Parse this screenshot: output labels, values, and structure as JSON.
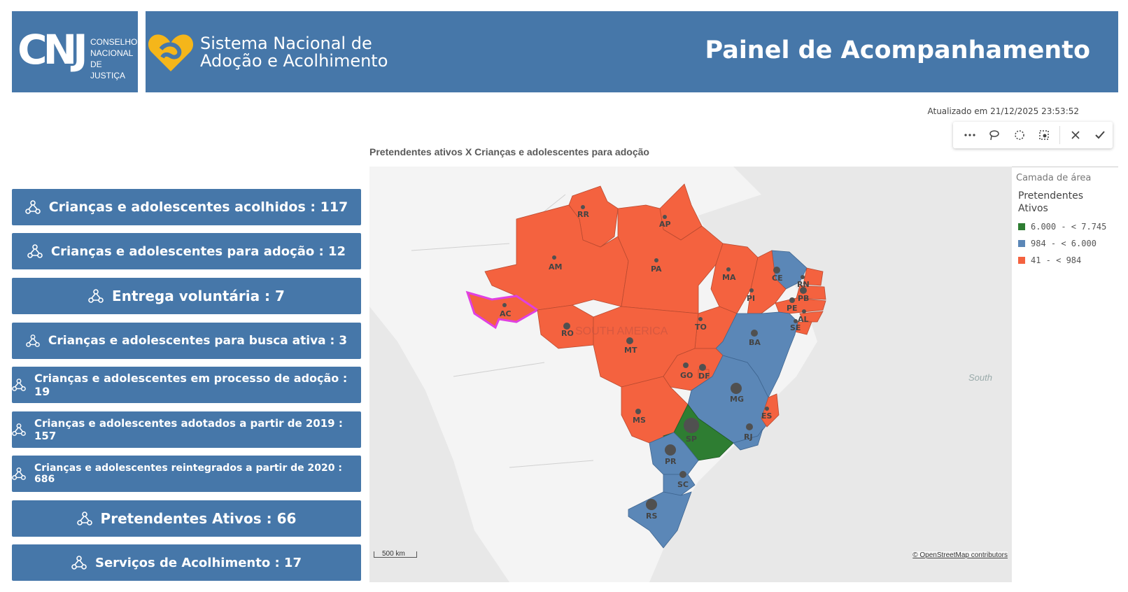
{
  "header": {
    "logo_letters": "CNJ",
    "logo_text_line1": "CONSELHO",
    "logo_text_line2": "NACIONAL",
    "logo_text_line3": "DE JUSTIÇA",
    "system_line1": "Sistema Nacional de",
    "system_line2": "Adoção e Acolhimento",
    "page_title": "Painel de Acompanhamento"
  },
  "updated_text": "Atualizado em 21/12/2025 23:53:52",
  "toolbar": {
    "icons": [
      "more-icon",
      "lasso-icon",
      "circle-select-icon",
      "area-select-icon",
      "close-icon",
      "check-icon"
    ]
  },
  "chart_title": "Pretendentes ativos X Crianças e adolescentes para adoção",
  "kpis": [
    {
      "label": "Crianças e adolescentes acolhidos : 117"
    },
    {
      "label": "Crianças e adolescentes para adoção : 12"
    },
    {
      "label": "Entrega voluntária : 7"
    },
    {
      "label": "Crianças e adolescentes para busca ativa : 3"
    },
    {
      "label": "Crianças e adolescentes em processo de adoção : 19"
    },
    {
      "label": "Crianças e adolescentes adotados a partir de 2019 : 157"
    },
    {
      "label": "Crianças e adolescentes reintegrados a partir de 2020 : 686"
    },
    {
      "label": "Pretendentes Ativos : 66"
    },
    {
      "label": "Serviços de Acolhimento : 17"
    }
  ],
  "map": {
    "continent_label": "SOUTH AMERICA",
    "ocean_label": "South",
    "scale_label": "500 km",
    "attribution": "© OpenStreetMap contributors",
    "colors": {
      "high": "#2e7d32",
      "mid": "#5b87b7",
      "low": "#f4623f",
      "selected": "#e040e0",
      "land": "#f4f4f4",
      "sea": "#e8e8e8"
    },
    "states": [
      "RR",
      "AP",
      "AM",
      "PA",
      "MA",
      "CE",
      "RN",
      "PB",
      "PI",
      "PE",
      "AL",
      "AC",
      "SE",
      "RO",
      "TO",
      "BA",
      "MT",
      "GO",
      "DF",
      "MG",
      "ES",
      "MS",
      "SP",
      "RJ",
      "PR",
      "SC",
      "RS"
    ]
  },
  "legend": {
    "header": "Camada de área",
    "title": "Pretendentes Ativos",
    "items": [
      {
        "label": "6.000 - < 7.745",
        "color": "#2e7d32"
      },
      {
        "label": "984 - < 6.000",
        "color": "#5b87b7"
      },
      {
        "label": "41 - < 984",
        "color": "#f4623f"
      }
    ]
  }
}
